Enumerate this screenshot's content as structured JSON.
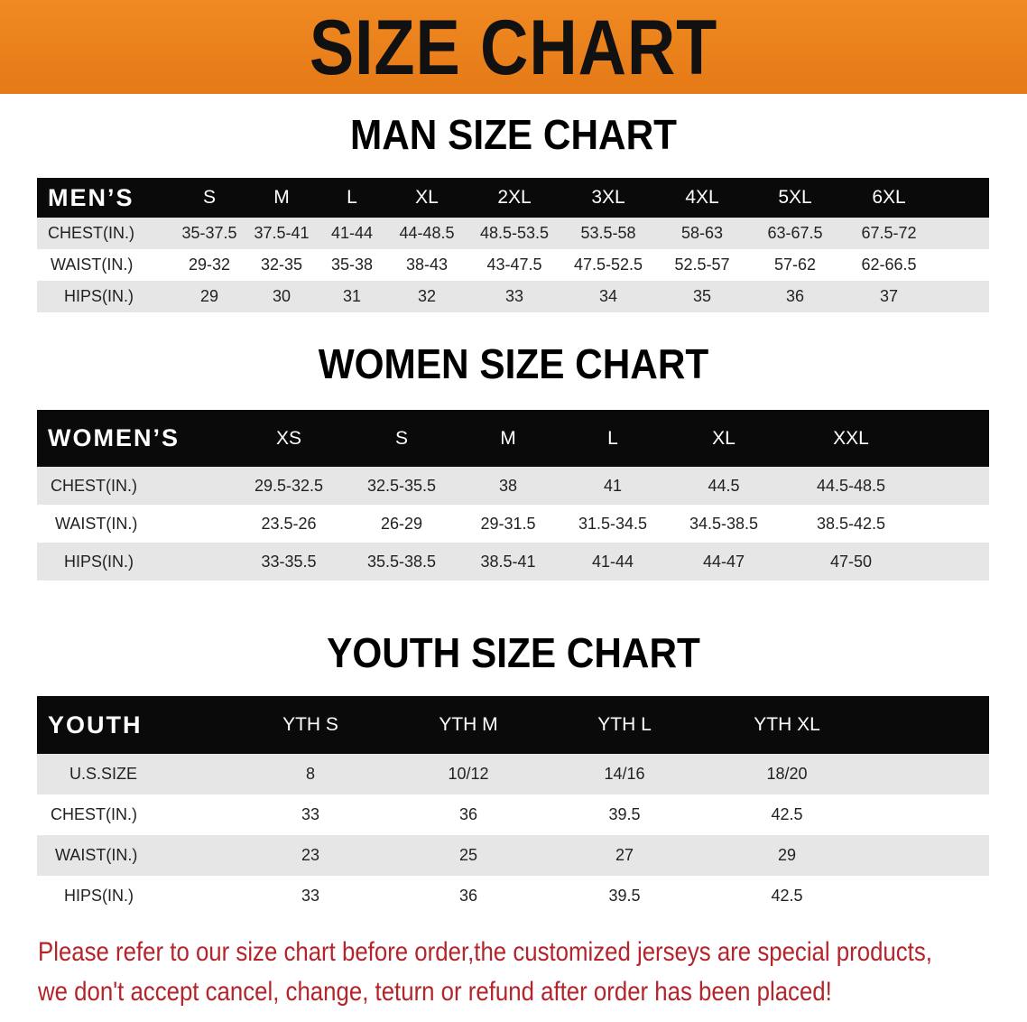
{
  "title": "SIZE CHART",
  "men": {
    "heading": "MAN SIZE CHART",
    "header": [
      "MEN’S",
      "S",
      "M",
      "L",
      "XL",
      "2XL",
      "3XL",
      "4XL",
      "5XL",
      "6XL"
    ],
    "rows": [
      [
        "CHEST(IN.)",
        "35-37.5",
        "37.5-41",
        "41-44",
        "44-48.5",
        "48.5-53.5",
        "53.5-58",
        "58-63",
        "63-67.5",
        "67.5-72"
      ],
      [
        "WAIST(IN.)",
        "29-32",
        "32-35",
        "35-38",
        "38-43",
        "43-47.5",
        "47.5-52.5",
        "52.5-57",
        "57-62",
        "62-66.5"
      ],
      [
        "HIPS(IN.)",
        "29",
        "30",
        "31",
        "32",
        "33",
        "34",
        "35",
        "36",
        "37"
      ]
    ]
  },
  "women": {
    "heading": "WOMEN SIZE CHART",
    "header": [
      "WOMEN’S",
      "XS",
      "S",
      "M",
      "L",
      "XL",
      "XXL"
    ],
    "rows": [
      [
        "CHEST(IN.)",
        "29.5-32.5",
        "32.5-35.5",
        "38",
        "41",
        "44.5",
        "44.5-48.5"
      ],
      [
        "WAIST(IN.)",
        "23.5-26",
        "26-29",
        "29-31.5",
        "31.5-34.5",
        "34.5-38.5",
        "38.5-42.5"
      ],
      [
        "HIPS(IN.)",
        "33-35.5",
        "35.5-38.5",
        "38.5-41",
        "41-44",
        "44-47",
        "47-50"
      ]
    ]
  },
  "youth": {
    "heading": "YOUTH SIZE CHART",
    "header": [
      "YOUTH",
      "YTH S",
      "YTH M",
      "YTH L",
      "YTH XL"
    ],
    "rows": [
      [
        "U.S.SIZE",
        "8",
        "10/12",
        "14/16",
        "18/20"
      ],
      [
        "CHEST(IN.)",
        "33",
        "36",
        "39.5",
        "42.5"
      ],
      [
        "WAIST(IN.)",
        "23",
        "25",
        "27",
        "29"
      ],
      [
        "HIPS(IN.)",
        "33",
        "36",
        "39.5",
        "42.5"
      ]
    ]
  },
  "notice": [
    "Please refer to our size chart before order,the customized jerseys are special products,",
    "we don't accept cancel, change, teturn or refund after order has been placed!"
  ]
}
